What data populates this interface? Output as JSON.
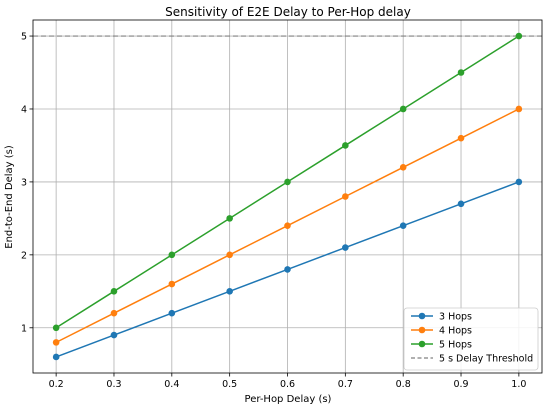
{
  "chart_data": {
    "type": "line",
    "title": "Sensitivity of E2E Delay to Per-Hop delay",
    "xlabel": "Per-Hop Delay (s)",
    "ylabel": "End-to-End Delay (s)",
    "x": [
      0.2,
      0.3,
      0.4,
      0.5,
      0.6,
      0.7,
      0.8,
      0.9,
      1.0
    ],
    "xticks": [
      "0.2",
      "0.3",
      "0.4",
      "0.5",
      "0.6",
      "0.7",
      "0.8",
      "0.9",
      "1.0"
    ],
    "yticks": [
      "1",
      "2",
      "3",
      "4",
      "5"
    ],
    "xlim": [
      0.16,
      1.04
    ],
    "ylim": [
      0.38,
      5.22
    ],
    "grid": true,
    "legend_position": "lower-right",
    "series": [
      {
        "name": "3 Hops",
        "color": "#1f77b4",
        "values": [
          0.6,
          0.9,
          1.2,
          1.5,
          1.8,
          2.1,
          2.4,
          2.7,
          3.0
        ]
      },
      {
        "name": "4 Hops",
        "color": "#ff7f0e",
        "values": [
          0.8,
          1.2,
          1.6,
          2.0,
          2.4,
          2.8,
          3.2,
          3.6,
          4.0
        ]
      },
      {
        "name": "5 Hops",
        "color": "#2ca02c",
        "values": [
          1.0,
          1.5,
          2.0,
          2.5,
          3.0,
          3.5,
          4.0,
          4.5,
          5.0
        ]
      }
    ],
    "threshold": {
      "name": "5 s Delay Threshold",
      "value": 5,
      "color": "#808080",
      "style": "dashed"
    }
  }
}
